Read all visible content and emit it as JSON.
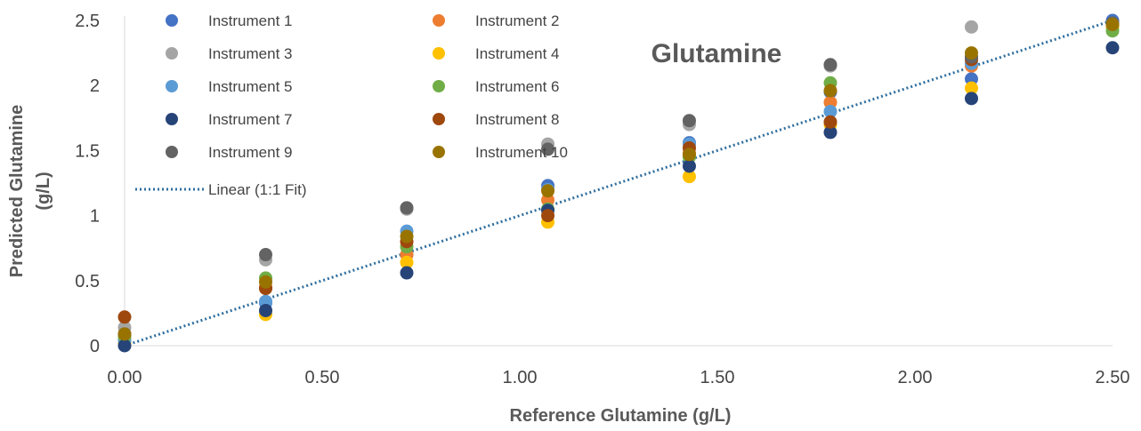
{
  "chart_data": {
    "type": "scatter",
    "title": "Glutamine",
    "xlabel": "Reference Glutamine (g/L)",
    "ylabel_line1": "Predicted Glutamine",
    "ylabel_line2": "(g/L)",
    "xlim": [
      0,
      2.5
    ],
    "ylim": [
      0,
      2.5
    ],
    "x_ticks": [
      "0.00",
      "0.50",
      "1.00",
      "1.50",
      "2.00",
      "2.50"
    ],
    "y_ticks": [
      "0",
      "0.5",
      "1",
      "1.5",
      "2",
      "2.5"
    ],
    "grid": false,
    "legend_position": "top-left",
    "x_levels": [
      0.0,
      0.357,
      0.714,
      1.071,
      1.429,
      1.786,
      2.143,
      2.5
    ],
    "series": [
      {
        "name": "Instrument 1",
        "color": "#4472C4",
        "values": [
          0.02,
          0.33,
          0.7,
          1.23,
          1.56,
          1.95,
          2.05,
          2.5
        ]
      },
      {
        "name": "Instrument 2",
        "color": "#ED7D31",
        "values": [
          0.05,
          0.45,
          0.7,
          1.12,
          1.48,
          1.87,
          2.15,
          2.45
        ]
      },
      {
        "name": "Instrument 3",
        "color": "#A5A5A5",
        "values": [
          0.14,
          0.66,
          1.05,
          1.55,
          1.7,
          2.15,
          2.45,
          2.45
        ]
      },
      {
        "name": "Instrument 4",
        "color": "#FFC000",
        "values": [
          0.02,
          0.24,
          0.64,
          0.95,
          1.3,
          1.7,
          1.98,
          2.45
        ]
      },
      {
        "name": "Instrument 5",
        "color": "#5B9BD5",
        "values": [
          0.04,
          0.34,
          0.88,
          1.2,
          1.55,
          1.8,
          2.17,
          2.48
        ]
      },
      {
        "name": "Instrument 6",
        "color": "#70AD47",
        "values": [
          0.07,
          0.52,
          0.76,
          1.05,
          1.45,
          2.02,
          2.22,
          2.42
        ]
      },
      {
        "name": "Instrument 7",
        "color": "#264478",
        "values": [
          0.0,
          0.27,
          0.56,
          1.04,
          1.38,
          1.64,
          1.9,
          2.29
        ]
      },
      {
        "name": "Instrument 8",
        "color": "#9E480E",
        "values": [
          0.22,
          0.44,
          0.8,
          1.0,
          1.52,
          1.72,
          2.2,
          2.47
        ]
      },
      {
        "name": "Instrument 9",
        "color": "#636363",
        "values": [
          0.09,
          0.7,
          1.06,
          1.51,
          1.73,
          2.16,
          2.22,
          2.48
        ]
      },
      {
        "name": "Instrument 10",
        "color": "#997300",
        "values": [
          0.09,
          0.49,
          0.84,
          1.19,
          1.47,
          1.96,
          2.25,
          2.47
        ]
      }
    ],
    "fit_line": {
      "name": "Linear (1:1 Fit)",
      "color": "#2F6E9E",
      "x": [
        0,
        2.5
      ],
      "y": [
        0,
        2.5
      ]
    }
  }
}
